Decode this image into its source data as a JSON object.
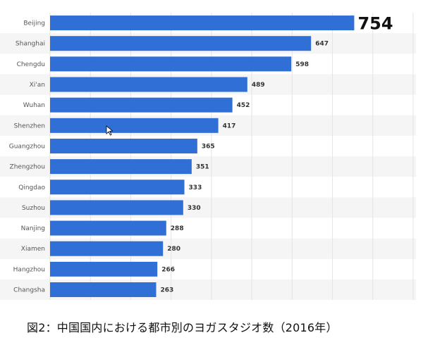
{
  "colors": {
    "bar": "#2f6fd6",
    "row_alt": "#f5f5f5",
    "grid": "#e4e4e4"
  },
  "chart_data": {
    "type": "bar",
    "orientation": "horizontal",
    "categories": [
      "Beijing",
      "Shanghai",
      "Chengdu",
      "Xi'an",
      "Wuhan",
      "Shenzhen",
      "Guangzhou",
      "Zhengzhou",
      "Qingdao",
      "Suzhou",
      "Nanjing",
      "Xiamen",
      "Hangzhou",
      "Changsha"
    ],
    "values": [
      754,
      647,
      598,
      489,
      452,
      417,
      365,
      351,
      333,
      330,
      288,
      280,
      266,
      263
    ],
    "title": "",
    "xlabel": "",
    "ylabel": "",
    "xlim": [
      0,
      900
    ],
    "grid": true,
    "highlight_index": 0
  },
  "caption": "図2：中国国内における都市別のヨガスタジオ数（2016年）"
}
